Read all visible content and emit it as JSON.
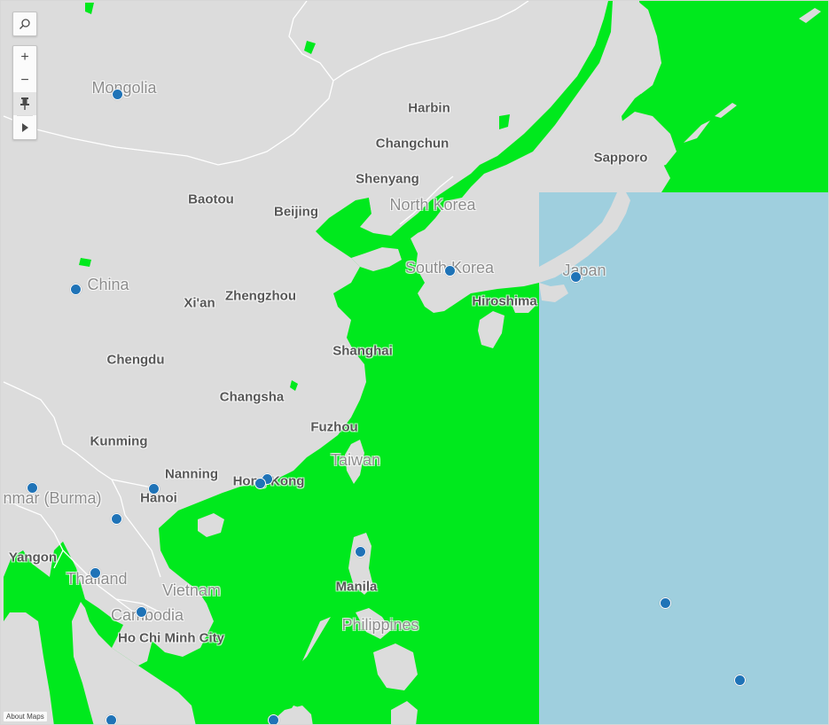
{
  "map": {
    "colors": {
      "land": "#dcdcdc",
      "water_highlight": "#00e91d",
      "water_plain": "#9fcfde",
      "marker": "#1f73b7",
      "border": "#ffffff"
    },
    "country_labels": [
      "Mongolia",
      "China",
      "North Korea",
      "South Korea",
      "Japan",
      "Taiwan",
      "nmar (Burma)",
      "Thailand",
      "Vietnam",
      "Cambodia",
      "Philippines"
    ],
    "city_labels": [
      "Harbin",
      "Changchun",
      "Sapporo",
      "Shenyang",
      "Baotou",
      "Beijing",
      "Xi'an",
      "Zhengzhou",
      "Hiroshima",
      "Shanghai",
      "Chengdu",
      "Changsha",
      "Fuzhou",
      "Kunming",
      "Nanning",
      "Hong Kong",
      "Hanoi",
      "Yangon",
      "Manila",
      "Ho Chi Minh City"
    ],
    "marker_count": 16
  },
  "toolbar": {
    "search_icon": "magnifier-icon",
    "zoom_in": "+",
    "zoom_out": "−",
    "pin_icon": "pushpin-icon",
    "play_icon": "triangle-right-icon"
  },
  "about_link": "About Maps"
}
